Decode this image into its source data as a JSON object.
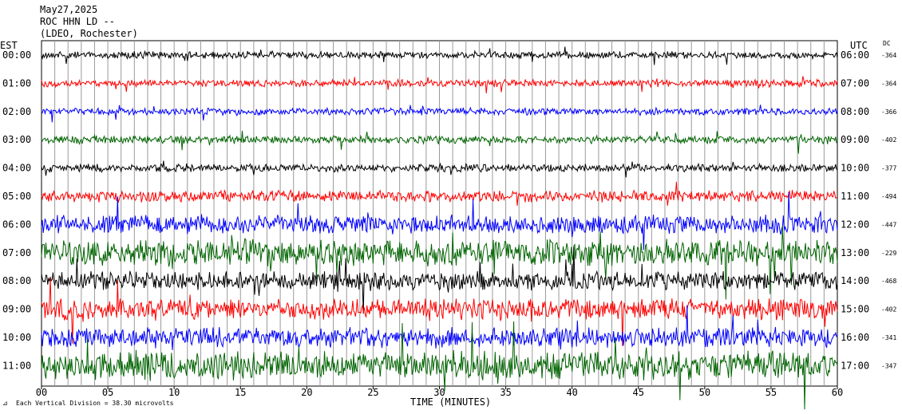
{
  "header": {
    "date": "May27,2025",
    "station": "ROC HHN LD --",
    "network": "(LDEO, Rochester)"
  },
  "axes": {
    "left_label": "EST",
    "right_label": "UTC",
    "dc_label": "DC",
    "x_title": "TIME (MINUTES)"
  },
  "footer": {
    "note": "Each Vertical Division = 38.30 microvolts"
  },
  "chart_data": {
    "type": "line",
    "subtype": "helicorder",
    "xlim": [
      0,
      60
    ],
    "x_ticks": [
      "00",
      "05",
      "10",
      "15",
      "20",
      "25",
      "30",
      "35",
      "40",
      "45",
      "50",
      "55",
      "60"
    ],
    "grid": "vertical lines every minute",
    "trace_colors": [
      "#000000",
      "#ff0000",
      "#0000ff",
      "#006400"
    ],
    "rows": [
      {
        "est": "00:00",
        "utc": "06:00",
        "dc": "-364",
        "amplitude": 1.0
      },
      {
        "est": "01:00",
        "utc": "07:00",
        "dc": "-364",
        "amplitude": 1.0
      },
      {
        "est": "02:00",
        "utc": "08:00",
        "dc": "-366",
        "amplitude": 1.0
      },
      {
        "est": "03:00",
        "utc": "09:00",
        "dc": "-402",
        "amplitude": 1.1
      },
      {
        "est": "04:00",
        "utc": "10:00",
        "dc": "-377",
        "amplitude": 1.1
      },
      {
        "est": "05:00",
        "utc": "11:00",
        "dc": "-494",
        "amplitude": 1.6
      },
      {
        "est": "06:00",
        "utc": "12:00",
        "dc": "-447",
        "amplitude": 2.6
      },
      {
        "est": "07:00",
        "utc": "13:00",
        "dc": "-229",
        "amplitude": 3.8
      },
      {
        "est": "08:00",
        "utc": "14:00",
        "dc": "-468",
        "amplitude": 2.6
      },
      {
        "est": "09:00",
        "utc": "15:00",
        "dc": "-402",
        "amplitude": 3.0
      },
      {
        "est": "10:00",
        "utc": "16:00",
        "dc": "-341",
        "amplitude": 2.8
      },
      {
        "est": "11:00",
        "utc": "17:00",
        "dc": "-347",
        "amplitude": 4.0
      }
    ]
  }
}
